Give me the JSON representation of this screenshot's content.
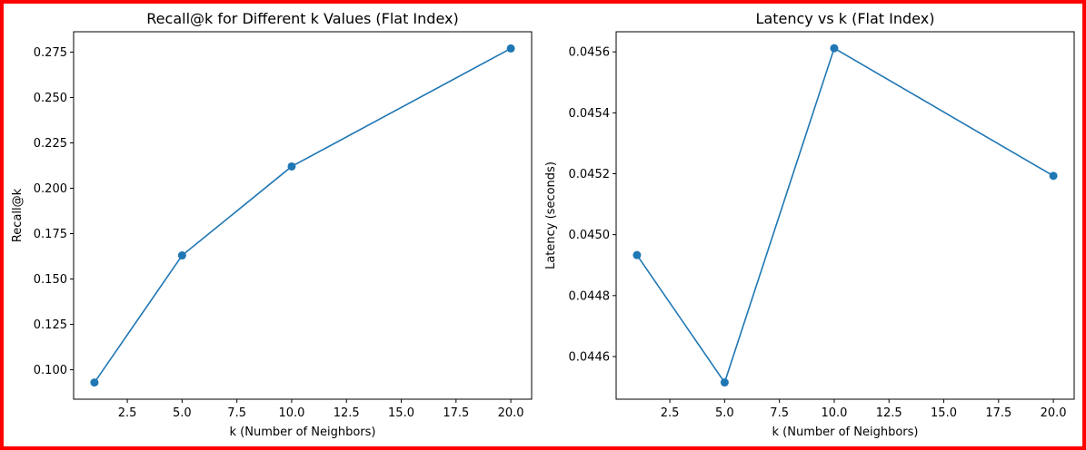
{
  "colors": {
    "line": "#1f77b4",
    "frame": "#ff0000"
  },
  "chart_data": [
    {
      "type": "line",
      "title": "Recall@k for Different k Values (Flat Index)",
      "xlabel": "k (Number of Neighbors)",
      "ylabel": "Recall@k",
      "x": [
        1,
        5,
        10,
        20
      ],
      "y": [
        0.093,
        0.163,
        0.212,
        0.277
      ],
      "xlim": [
        0.05,
        20.95
      ],
      "ylim": [
        0.0838,
        0.2862
      ],
      "xticks": [
        2.5,
        5.0,
        7.5,
        10.0,
        12.5,
        15.0,
        17.5,
        20.0
      ],
      "xtick_labels": [
        "2.5",
        "5.0",
        "7.5",
        "10.0",
        "12.5",
        "15.0",
        "17.5",
        "20.0"
      ],
      "yticks": [
        0.1,
        0.125,
        0.15,
        0.175,
        0.2,
        0.225,
        0.25,
        0.275
      ],
      "ytick_labels": [
        "0.100",
        "0.125",
        "0.150",
        "0.175",
        "0.200",
        "0.225",
        "0.250",
        "0.275"
      ],
      "marker": "circle",
      "grid": false
    },
    {
      "type": "line",
      "title": "Latency vs k (Flat Index)",
      "xlabel": "k (Number of Neighbors)",
      "ylabel": "Latency (seconds)",
      "x": [
        1,
        5,
        10,
        20
      ],
      "y": [
        0.044933,
        0.044515,
        0.045612,
        0.045193
      ],
      "xlim": [
        0.05,
        20.95
      ],
      "ylim": [
        0.04446,
        0.045666
      ],
      "xticks": [
        2.5,
        5.0,
        7.5,
        10.0,
        12.5,
        15.0,
        17.5,
        20.0
      ],
      "xtick_labels": [
        "2.5",
        "5.0",
        "7.5",
        "10.0",
        "12.5",
        "15.0",
        "17.5",
        "20.0"
      ],
      "yticks": [
        0.0446,
        0.0448,
        0.045,
        0.0452,
        0.0454,
        0.0456
      ],
      "ytick_labels": [
        "0.0446",
        "0.0448",
        "0.0450",
        "0.0452",
        "0.0454",
        "0.0456"
      ],
      "marker": "circle",
      "grid": false
    }
  ]
}
